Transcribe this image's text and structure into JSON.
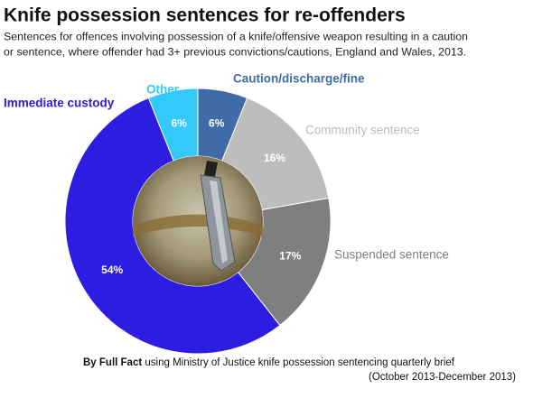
{
  "chart_data": {
    "type": "donut",
    "title": "Knife possession sentences for re-offenders",
    "subtitle": [
      "Sentences for offences involving possession of a knife/offensive weapon resulting in a caution",
      "or sentence, where offender had 3+ previous convictions/cautions, England and Wales, 2013."
    ],
    "categories": [
      "Caution/discharge/fine",
      "Community sentence",
      "Suspended sentence",
      "Immediate custody",
      "Other"
    ],
    "values": [
      6,
      16,
      17,
      54,
      6
    ],
    "value_labels": [
      "6%",
      "16%",
      "17%",
      "54%",
      "6%"
    ],
    "colors": [
      "#3f6ca6",
      "#bdbdbd",
      "#7f7f7f",
      "#2d1de0",
      "#33c9f8"
    ],
    "source": {
      "by": "By Full Fact",
      "text": "using Ministry of Justice knife possession sentencing quarterly brief",
      "period": "(October 2013-December 2013)"
    }
  }
}
